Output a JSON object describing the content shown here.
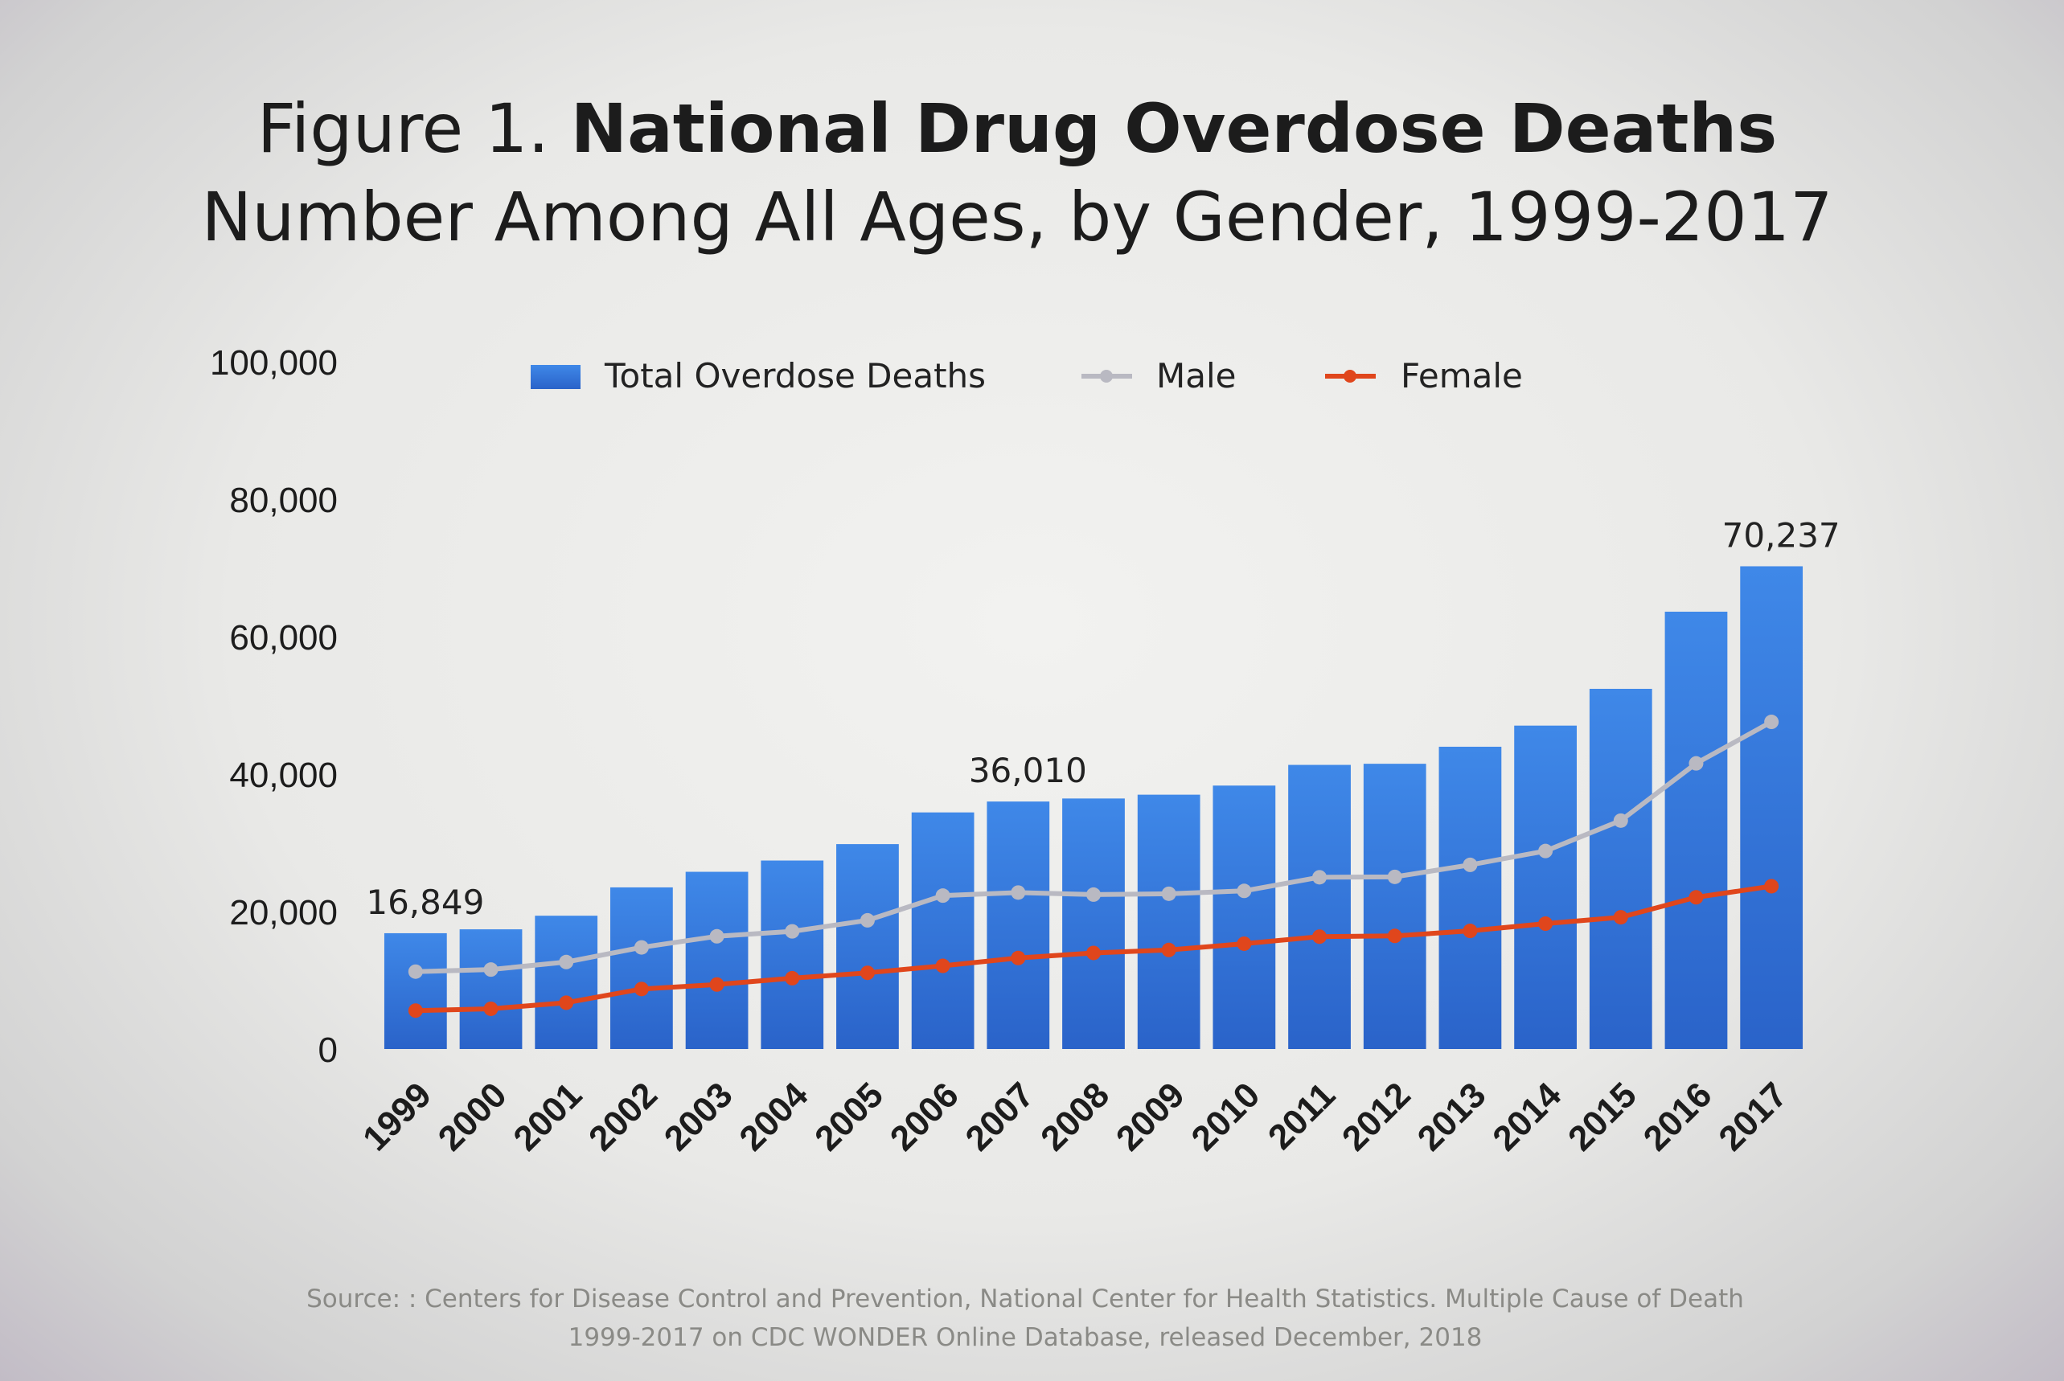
{
  "title": {
    "prefix": "Figure 1.",
    "bold": "National Drug Overdose Deaths",
    "subtitle": "Number Among All Ages, by Gender, 1999-2017"
  },
  "source": {
    "line1": "Source: : Centers for Disease Control and Prevention, National Center for Health Statistics. Multiple Cause of Death",
    "line2": "1999-2017 on CDC WONDER Online Database, released December, 2018"
  },
  "colors": {
    "bar": "#2f72d6",
    "bar_top": "#3d86e6",
    "male": "#b9b9c2",
    "female": "#e0461c"
  },
  "chart_data": {
    "type": "bar",
    "title": "National Drug Overdose Deaths",
    "subtitle": "Number Among All Ages, by Gender, 1999-2017",
    "xlabel": "",
    "ylabel": "",
    "ylim": [
      0,
      100000
    ],
    "yticks": [
      "0",
      "20,000",
      "40,000",
      "60,000",
      "80,000",
      "100,000"
    ],
    "ytick_values": [
      0,
      20000,
      40000,
      60000,
      80000,
      100000
    ],
    "categories": [
      "1999",
      "2000",
      "2001",
      "2002",
      "2003",
      "2004",
      "2005",
      "2006",
      "2007",
      "2008",
      "2009",
      "2010",
      "2011",
      "2012",
      "2013",
      "2014",
      "2015",
      "2016",
      "2017"
    ],
    "legend_position": "top",
    "series": [
      {
        "name": "Total Overdose Deaths",
        "kind": "bar",
        "values": [
          16849,
          17415,
          19394,
          23518,
          25785,
          27424,
          29813,
          34425,
          36010,
          36450,
          37004,
          38329,
          41340,
          41502,
          43982,
          47055,
          52404,
          63632,
          70237
        ]
      },
      {
        "name": "Male",
        "kind": "line",
        "values": [
          11258,
          11563,
          12658,
          14785,
          16399,
          17120,
          18724,
          22322,
          22767,
          22468,
          22593,
          23006,
          24988,
          25047,
          26794,
          28812,
          33236,
          41558,
          47600
        ]
      },
      {
        "name": "Female",
        "kind": "line",
        "values": [
          5591,
          5852,
          6736,
          8733,
          9386,
          10304,
          11089,
          12103,
          13243,
          13982,
          14411,
          15323,
          16352,
          16455,
          17188,
          18243,
          19168,
          22074,
          23685
        ]
      }
    ],
    "annotations": [
      {
        "category": "1999",
        "text": "16,849"
      },
      {
        "category": "2007",
        "text": "36,010"
      },
      {
        "category": "2017",
        "text": "70,237"
      }
    ]
  }
}
